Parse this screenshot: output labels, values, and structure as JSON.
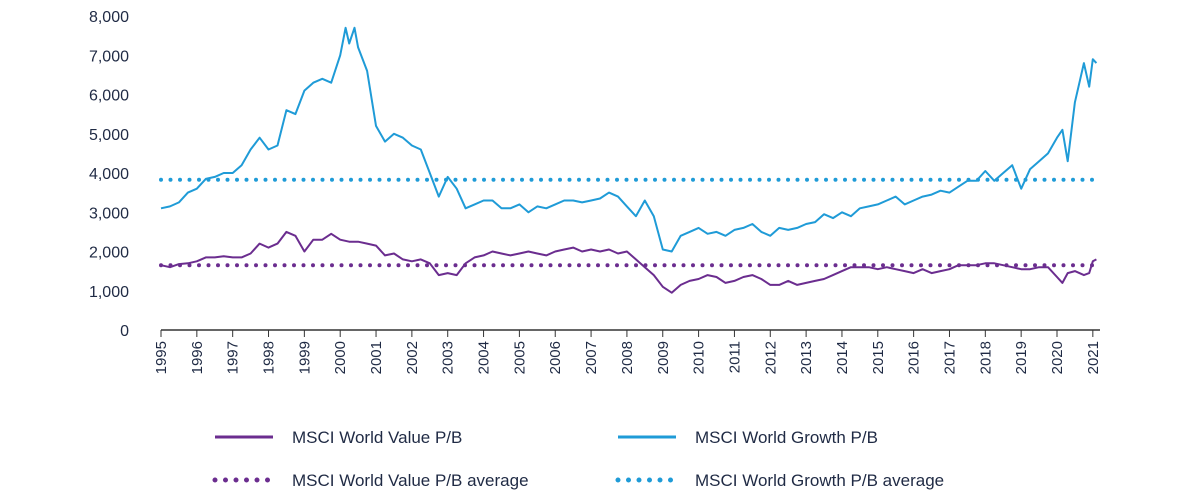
{
  "chart_data": {
    "type": "line",
    "title": "",
    "xlabel": "",
    "ylabel": "",
    "ylim": [
      0,
      8000
    ],
    "y_ticks": [
      "0",
      "1,000",
      "2,000",
      "3,000",
      "4,000",
      "5,000",
      "6,000",
      "7,000",
      "8,000"
    ],
    "x_ticks": [
      "1995",
      "1996",
      "1997",
      "1998",
      "1999",
      "2000",
      "2001",
      "2002",
      "2003",
      "2004",
      "2005",
      "2006",
      "2007",
      "2008",
      "2009",
      "2010",
      "2011",
      "2012",
      "2013",
      "2014",
      "2015",
      "2016",
      "2017",
      "2018",
      "2019",
      "2020",
      "2021"
    ],
    "xlim": [
      1995,
      2021.2
    ],
    "grid": false,
    "legend_position": "bottom",
    "series": [
      {
        "name": "MSCI World Value P/B",
        "color": "#6b2d8f",
        "style": "solid",
        "x": [
          1995.0,
          1995.25,
          1995.5,
          1995.75,
          1996.0,
          1996.25,
          1996.5,
          1996.75,
          1997.0,
          1997.25,
          1997.5,
          1997.75,
          1998.0,
          1998.25,
          1998.5,
          1998.75,
          1999.0,
          1999.25,
          1999.5,
          1999.75,
          2000.0,
          2000.25,
          2000.5,
          2000.75,
          2001.0,
          2001.25,
          2001.5,
          2001.75,
          2002.0,
          2002.25,
          2002.5,
          2002.75,
          2003.0,
          2003.25,
          2003.5,
          2003.75,
          2004.0,
          2004.25,
          2004.5,
          2004.75,
          2005.0,
          2005.25,
          2005.5,
          2005.75,
          2006.0,
          2006.25,
          2006.5,
          2006.75,
          2007.0,
          2007.25,
          2007.5,
          2007.75,
          2008.0,
          2008.25,
          2008.5,
          2008.75,
          2009.0,
          2009.25,
          2009.5,
          2009.75,
          2010.0,
          2010.25,
          2010.5,
          2010.75,
          2011.0,
          2011.25,
          2011.5,
          2011.75,
          2012.0,
          2012.25,
          2012.5,
          2012.75,
          2013.0,
          2013.25,
          2013.5,
          2013.75,
          2014.0,
          2014.25,
          2014.5,
          2014.75,
          2015.0,
          2015.25,
          2015.5,
          2015.75,
          2016.0,
          2016.25,
          2016.5,
          2016.75,
          2017.0,
          2017.25,
          2017.5,
          2017.75,
          2018.0,
          2018.25,
          2018.5,
          2018.75,
          2019.0,
          2019.25,
          2019.5,
          2019.75,
          2020.0,
          2020.15,
          2020.3,
          2020.5,
          2020.75,
          2020.9,
          2021.0,
          2021.1
        ],
        "values": [
          1650,
          1600,
          1680,
          1700,
          1750,
          1850,
          1850,
          1880,
          1850,
          1850,
          1950,
          2200,
          2100,
          2200,
          2500,
          2400,
          2000,
          2300,
          2300,
          2450,
          2300,
          2250,
          2250,
          2200,
          2150,
          1900,
          1950,
          1800,
          1750,
          1800,
          1700,
          1400,
          1450,
          1400,
          1700,
          1850,
          1900,
          2000,
          1950,
          1900,
          1950,
          2000,
          1950,
          1900,
          2000,
          2050,
          2100,
          2000,
          2050,
          2000,
          2050,
          1950,
          2000,
          1800,
          1600,
          1400,
          1100,
          950,
          1150,
          1250,
          1300,
          1400,
          1350,
          1200,
          1250,
          1350,
          1400,
          1300,
          1150,
          1150,
          1250,
          1150,
          1200,
          1250,
          1300,
          1400,
          1500,
          1600,
          1600,
          1600,
          1550,
          1600,
          1550,
          1500,
          1450,
          1550,
          1450,
          1500,
          1550,
          1650,
          1650,
          1650,
          1700,
          1700,
          1650,
          1600,
          1550,
          1550,
          1600,
          1600,
          1350,
          1200,
          1450,
          1500,
          1400,
          1450,
          1750,
          1800
        ]
      },
      {
        "name": "MSCI World Growth P/B",
        "color": "#1f9bd7",
        "style": "solid",
        "x": [
          1995.0,
          1995.25,
          1995.5,
          1995.75,
          1996.0,
          1996.25,
          1996.5,
          1996.75,
          1997.0,
          1997.25,
          1997.5,
          1997.75,
          1998.0,
          1998.25,
          1998.5,
          1998.75,
          1999.0,
          1999.25,
          1999.5,
          1999.75,
          2000.0,
          2000.15,
          2000.25,
          2000.4,
          2000.5,
          2000.75,
          2001.0,
          2001.25,
          2001.5,
          2001.75,
          2002.0,
          2002.25,
          2002.5,
          2002.75,
          2003.0,
          2003.25,
          2003.5,
          2003.75,
          2004.0,
          2004.25,
          2004.5,
          2004.75,
          2005.0,
          2005.25,
          2005.5,
          2005.75,
          2006.0,
          2006.25,
          2006.5,
          2006.75,
          2007.0,
          2007.25,
          2007.5,
          2007.75,
          2008.0,
          2008.25,
          2008.5,
          2008.75,
          2009.0,
          2009.25,
          2009.5,
          2009.75,
          2010.0,
          2010.25,
          2010.5,
          2010.75,
          2011.0,
          2011.25,
          2011.5,
          2011.75,
          2012.0,
          2012.25,
          2012.5,
          2012.75,
          2013.0,
          2013.25,
          2013.5,
          2013.75,
          2014.0,
          2014.25,
          2014.5,
          2014.75,
          2015.0,
          2015.25,
          2015.5,
          2015.75,
          2016.0,
          2016.25,
          2016.5,
          2016.75,
          2017.0,
          2017.25,
          2017.5,
          2017.75,
          2018.0,
          2018.25,
          2018.5,
          2018.75,
          2019.0,
          2019.25,
          2019.5,
          2019.75,
          2020.0,
          2020.15,
          2020.3,
          2020.5,
          2020.65,
          2020.75,
          2020.9,
          2021.0,
          2021.1
        ],
        "values": [
          3100,
          3150,
          3250,
          3500,
          3600,
          3850,
          3900,
          4000,
          4000,
          4200,
          4600,
          4900,
          4600,
          4700,
          5600,
          5500,
          6100,
          6300,
          6400,
          6300,
          7000,
          7700,
          7300,
          7700,
          7200,
          6600,
          5200,
          4800,
          5000,
          4900,
          4700,
          4600,
          4000,
          3400,
          3900,
          3600,
          3100,
          3200,
          3300,
          3300,
          3100,
          3100,
          3200,
          3000,
          3150,
          3100,
          3200,
          3300,
          3300,
          3250,
          3300,
          3350,
          3500,
          3400,
          3150,
          2900,
          3300,
          2900,
          2050,
          2000,
          2400,
          2500,
          2600,
          2450,
          2500,
          2400,
          2550,
          2600,
          2700,
          2500,
          2400,
          2600,
          2550,
          2600,
          2700,
          2750,
          2950,
          2850,
          3000,
          2900,
          3100,
          3150,
          3200,
          3300,
          3400,
          3200,
          3300,
          3400,
          3450,
          3550,
          3500,
          3650,
          3800,
          3800,
          4050,
          3800,
          4000,
          4200,
          3600,
          4100,
          4300,
          4500,
          4900,
          5100,
          4300,
          5800,
          6400,
          6800,
          6200,
          6900,
          6800
        ]
      },
      {
        "name": "MSCI World Value P/B average",
        "color": "#6b2d8f",
        "style": "dotted",
        "x": [
          1995.0,
          2021.1
        ],
        "values": [
          1650,
          1650
        ]
      },
      {
        "name": "MSCI World Growth P/B average",
        "color": "#1f9bd7",
        "style": "dotted",
        "x": [
          1995.0,
          2021.1
        ],
        "values": [
          3830,
          3830
        ]
      }
    ]
  }
}
